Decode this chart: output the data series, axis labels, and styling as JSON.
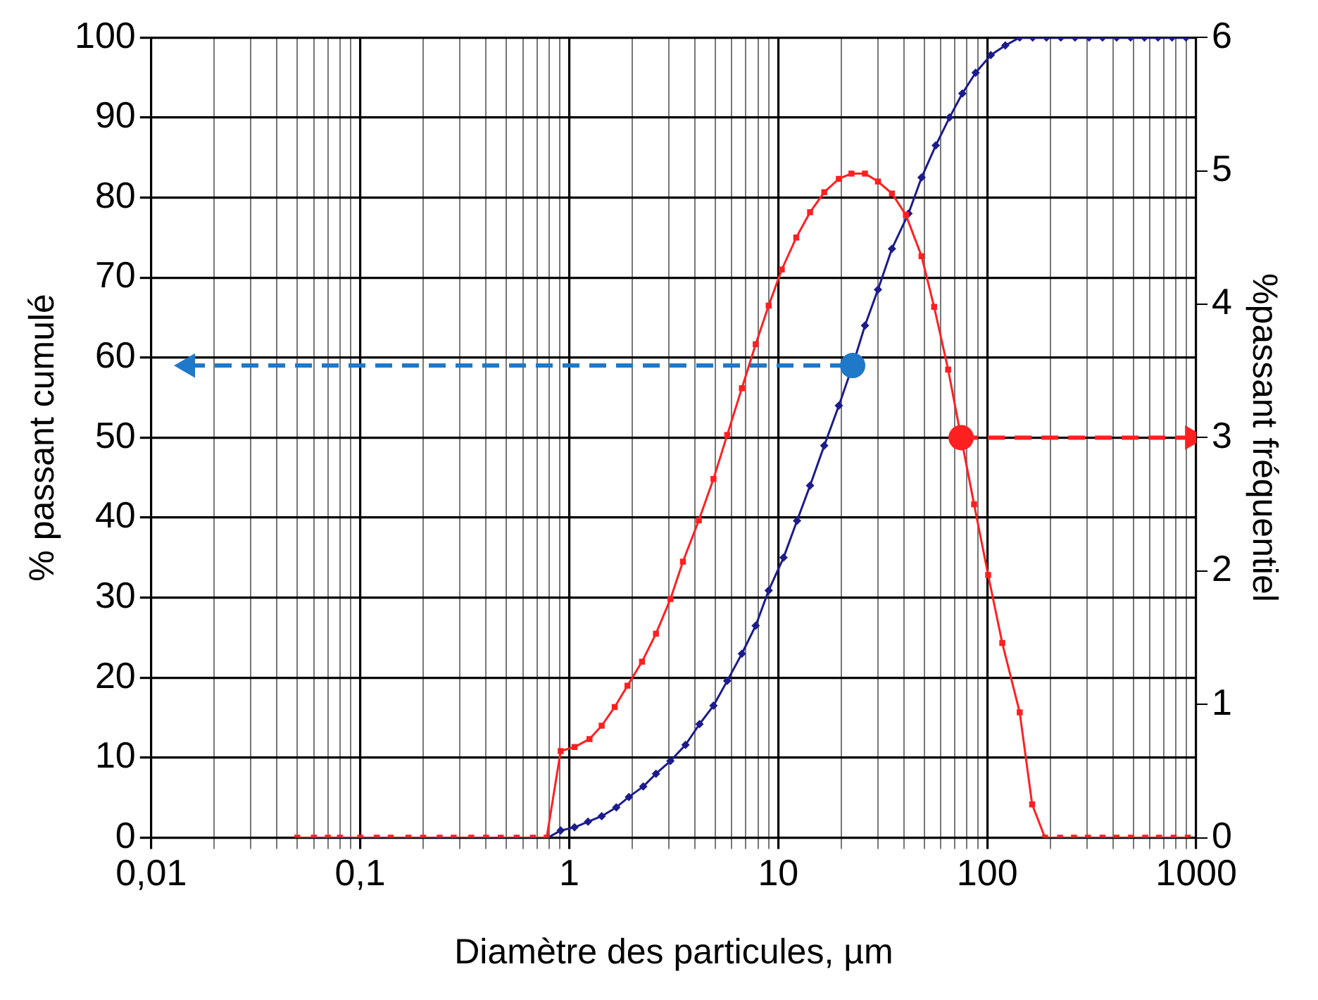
{
  "chart_data": {
    "type": "line",
    "xlabel": "Diamètre des particules, µm",
    "ylabel": "% passant cumulé",
    "y2label": "%passant fréquentiel",
    "log": "x",
    "grid": true,
    "legend": false,
    "xlim": [
      0.01,
      1000
    ],
    "xticks": [
      {
        "value": 0.01,
        "label": "0,01"
      },
      {
        "value": 0.02,
        "label": null
      },
      {
        "value": 0.03,
        "label": null
      },
      {
        "value": 0.04,
        "label": null
      },
      {
        "value": 0.05,
        "label": null
      },
      {
        "value": 0.06,
        "label": null
      },
      {
        "value": 0.07,
        "label": null
      },
      {
        "value": 0.08,
        "label": null
      },
      {
        "value": 0.09,
        "label": null
      },
      {
        "value": 0.1,
        "label": "0,1"
      },
      {
        "value": 0.2,
        "label": null
      },
      {
        "value": 0.3,
        "label": null
      },
      {
        "value": 0.4,
        "label": null
      },
      {
        "value": 0.5,
        "label": null
      },
      {
        "value": 0.6,
        "label": null
      },
      {
        "value": 0.7,
        "label": null
      },
      {
        "value": 0.8,
        "label": null
      },
      {
        "value": 0.9,
        "label": null
      },
      1,
      {
        "value": 2,
        "label": null
      },
      {
        "value": 3,
        "label": null
      },
      {
        "value": 4,
        "label": null
      },
      {
        "value": 5,
        "label": null
      },
      {
        "value": 6,
        "label": null
      },
      {
        "value": 7,
        "label": null
      },
      {
        "value": 8,
        "label": null
      },
      {
        "value": 9,
        "label": null
      },
      10,
      {
        "value": 20,
        "label": null
      },
      {
        "value": 30,
        "label": null
      },
      {
        "value": 40,
        "label": null
      },
      {
        "value": 50,
        "label": null
      },
      {
        "value": 60,
        "label": null
      },
      {
        "value": 70,
        "label": null
      },
      {
        "value": 80,
        "label": null
      },
      {
        "value": 90,
        "label": null
      },
      100,
      {
        "value": 200,
        "label": null
      },
      {
        "value": 300,
        "label": null
      },
      {
        "value": 400,
        "label": null
      },
      {
        "value": 500,
        "label": null
      },
      {
        "value": 600,
        "label": null
      },
      {
        "value": 700,
        "label": null
      },
      {
        "value": 800,
        "label": null
      },
      {
        "value": 900,
        "label": null
      },
      1000
    ],
    "ylim": [
      0,
      100
    ],
    "yticks": [
      0,
      10,
      20,
      30,
      40,
      50,
      60,
      70,
      80,
      90,
      100
    ],
    "y2lim": [
      0,
      6
    ],
    "y2ticks": [
      0,
      1,
      2,
      3,
      4,
      5,
      6
    ],
    "series": [
      {
        "axis": "y2",
        "color": "#ff2020",
        "marker": "square",
        "line_style": "solid",
        "x": [
          0.05,
          0.06,
          0.07,
          0.08,
          0.1,
          0.12,
          0.14,
          0.17,
          0.2,
          0.24,
          0.28,
          0.34,
          0.4,
          0.47,
          0.56,
          0.67,
          0.78,
          0.91,
          1.06,
          1.25,
          1.43,
          1.65,
          1.9,
          2.23,
          2.6,
          3.05,
          3.5,
          4.17,
          4.9,
          5.7,
          6.7,
          7.8,
          9.0,
          10.4,
          12.2,
          14.2,
          16.6,
          19.5,
          22.4,
          26,
          30,
          35,
          40.8,
          48.5,
          55.7,
          65,
          75,
          86.5,
          101,
          118,
          143,
          164,
          189,
          223,
          260,
          303,
          356,
          415,
          487,
          570,
          664,
          779,
          911
        ],
        "values": [
          0,
          0,
          0,
          0,
          0,
          0,
          0,
          0,
          0,
          0,
          0,
          0,
          0,
          0,
          0,
          0,
          0,
          0.65,
          0.68,
          0.74,
          0.84,
          0.98,
          1.14,
          1.32,
          1.53,
          1.79,
          2.07,
          2.38,
          2.69,
          3.02,
          3.37,
          3.7,
          3.99,
          4.26,
          4.5,
          4.69,
          4.84,
          4.94,
          4.98,
          4.98,
          4.92,
          4.83,
          4.67,
          4.36,
          3.98,
          3.51,
          3.0,
          2.5,
          1.97,
          1.46,
          0.94,
          0.25,
          0,
          0,
          0,
          0,
          0,
          0,
          0,
          0,
          0,
          0,
          0
        ]
      },
      {
        "axis": "y",
        "color": "#1c1c8c",
        "marker": "diamond",
        "line_style": "solid",
        "x": [
          0.79,
          0.91,
          1.06,
          1.23,
          1.43,
          1.68,
          1.93,
          2.26,
          2.6,
          3.05,
          3.6,
          4.2,
          4.9,
          5.7,
          6.7,
          7.8,
          9.0,
          10.6,
          12.3,
          14.2,
          16.6,
          19.5,
          22.7,
          26,
          30,
          35,
          42,
          48.5,
          56.7,
          66,
          76,
          88,
          104,
          122,
          143,
          165,
          192,
          225,
          263,
          307,
          356,
          416,
          485,
          565,
          656,
          766,
          893
        ],
        "values": [
          0,
          0.9,
          1.3,
          2,
          2.7,
          3.8,
          5.1,
          6.4,
          8,
          9.6,
          11.6,
          14.2,
          16.5,
          19.6,
          23,
          26.5,
          30.9,
          35,
          39.6,
          44,
          49,
          54,
          59,
          64,
          68.5,
          73.6,
          78,
          82.5,
          86.5,
          90,
          93,
          95.6,
          97.8,
          99,
          100,
          100,
          100,
          100,
          100,
          100,
          100,
          100,
          100,
          100,
          100,
          100,
          100
        ]
      },
      {
        "axis": "y",
        "color": "#1f78c8",
        "marker": "triangle",
        "line_style": "dashed",
        "x": [
          0.015,
          22.7
        ],
        "values": [
          59,
          59
        ]
      },
      {
        "axis": "y2",
        "color": "#ff2020",
        "marker": "triangle",
        "line_style": "dashed",
        "x": [
          75,
          955
        ],
        "values": [
          3.0,
          3.0
        ]
      },
      {
        "type": "scatter",
        "axis": "y",
        "color": "#1f78c8",
        "marker": "circle",
        "x": [
          22.7
        ],
        "values": [
          59
        ]
      },
      {
        "type": "scatter",
        "axis": "y2",
        "color": "#ff2020",
        "marker": "circle",
        "x": [
          75
        ],
        "values": [
          3.0
        ]
      }
    ]
  }
}
